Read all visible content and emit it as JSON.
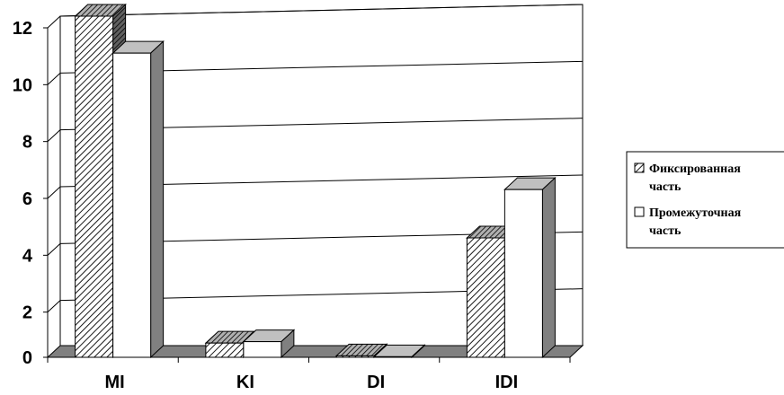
{
  "chart_data": {
    "type": "bar",
    "style": "3d-clustered-column",
    "categories": [
      "MI",
      "KI",
      "DI",
      "IDI"
    ],
    "series": [
      {
        "name": "Фиксированная часть",
        "values": [
          12.0,
          0.5,
          0.05,
          4.2
        ],
        "fill": "hatched"
      },
      {
        "name": "Промежуточная часть",
        "values": [
          10.7,
          0.55,
          0.02,
          5.9
        ],
        "fill": "#ffffff"
      }
    ],
    "ylim": [
      0,
      12
    ],
    "yticks": [
      0,
      2,
      4,
      6,
      8,
      10,
      12
    ],
    "grid": true,
    "legend": "right",
    "legend_lines": [
      [
        "Фиксированная",
        "часть"
      ],
      [
        "Промежуточная",
        "часть"
      ]
    ],
    "title": "",
    "xlabel": "",
    "ylabel": ""
  },
  "colors": {
    "wall": "#ffffff",
    "grid": "#000000",
    "floor": "#808080",
    "bar_side": "#808080",
    "top_white": "#c0c0c0",
    "hatch": "#000000"
  }
}
